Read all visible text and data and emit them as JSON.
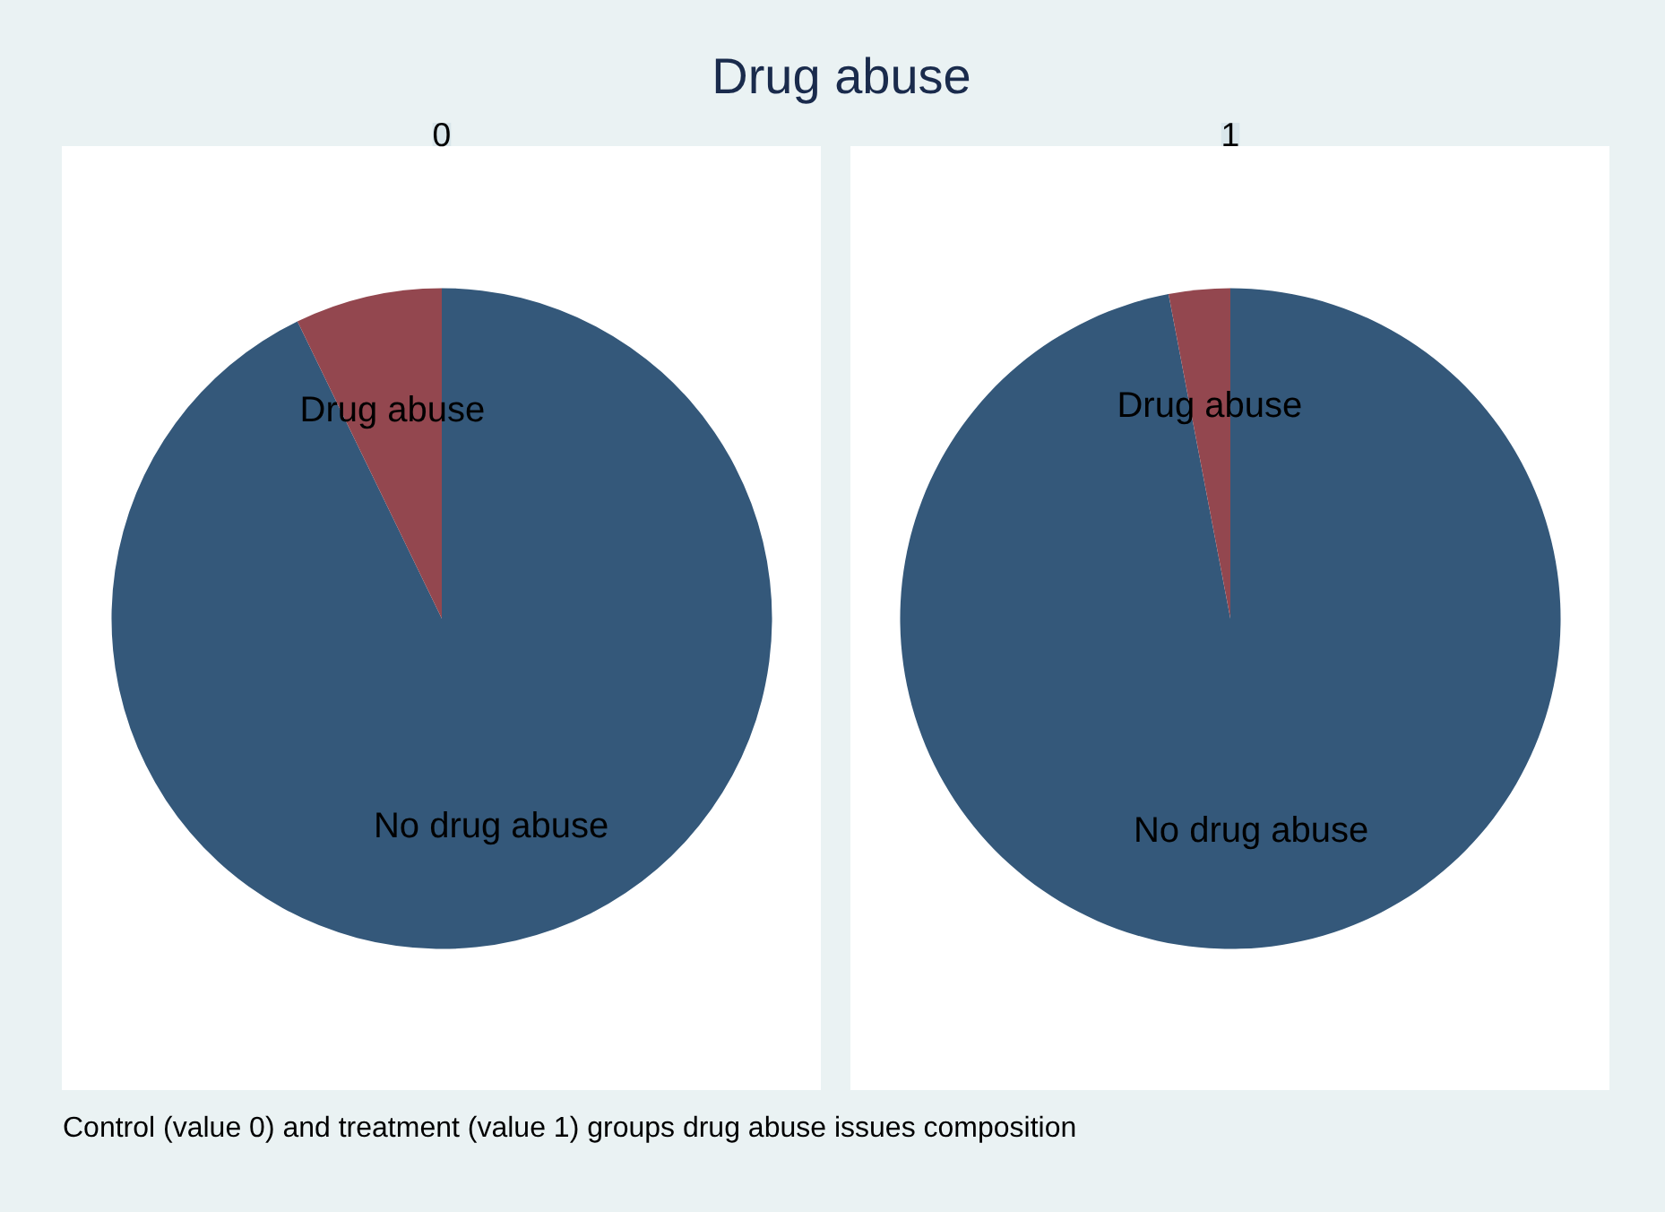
{
  "chart_data": [
    {
      "type": "other",
      "title": "Drug abuse",
      "annotations": [
        "Control (value 0) and treatment (value 1) groups drug abuse issues composition"
      ]
    },
    {
      "type": "pie",
      "title": "0",
      "categories": [
        "No drug abuse",
        "Drug abuse"
      ],
      "values": [
        92.8,
        7.2
      ],
      "colors": [
        "#34587a",
        "#93474f"
      ]
    },
    {
      "type": "pie",
      "title": "1",
      "categories": [
        "No drug abuse",
        "Drug abuse"
      ],
      "values": [
        97,
        3
      ],
      "colors": [
        "#34587a",
        "#93474f"
      ]
    }
  ]
}
